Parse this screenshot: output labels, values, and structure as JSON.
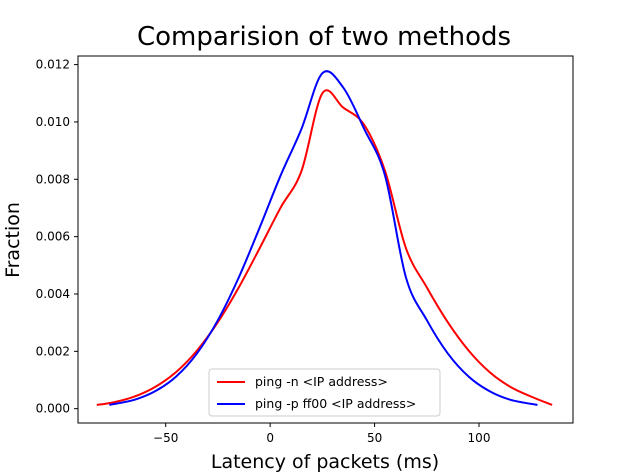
{
  "chart_data": {
    "type": "line",
    "title": "Comparision of two methods",
    "xlabel": "Latency of packets (ms)",
    "ylabel": "Fraction",
    "xlim": [
      -92,
      145
    ],
    "ylim": [
      -0.0005,
      0.0123
    ],
    "xticks": [
      -50,
      0,
      50,
      100
    ],
    "xtick_labels": [
      "−50",
      "0",
      "50",
      "100"
    ],
    "yticks": [
      0.0,
      0.002,
      0.004,
      0.006,
      0.008,
      0.01,
      0.012
    ],
    "ytick_labels": [
      "0.000",
      "0.002",
      "0.004",
      "0.006",
      "0.008",
      "0.010",
      "0.012"
    ],
    "grid": false,
    "legend_position": "lower center",
    "series": [
      {
        "name": "ping -n <IP address>",
        "color": "#ff0000",
        "x": [
          -83,
          -75,
          -65,
          -55,
          -45,
          -35,
          -25,
          -15,
          -5,
          5,
          15,
          25,
          35,
          45,
          55,
          65,
          75,
          85,
          95,
          105,
          115,
          125,
          135
        ],
        "y": [
          0.00013,
          0.00022,
          0.00042,
          0.00076,
          0.00128,
          0.00203,
          0.00302,
          0.00423,
          0.0056,
          0.00701,
          0.00829,
          0.011,
          0.0105,
          0.0099,
          0.00829,
          0.0056,
          0.00423,
          0.00302,
          0.00203,
          0.00128,
          0.00076,
          0.00042,
          0.00013
        ]
      },
      {
        "name": "ping -p ff00 <IP address>",
        "color": "#0000ff",
        "x": [
          -77,
          -65,
          -55,
          -45,
          -35,
          -25,
          -15,
          -5,
          5,
          15,
          25,
          35,
          45,
          55,
          65,
          75,
          85,
          95,
          105,
          115,
          128
        ],
        "y": [
          0.00013,
          0.00031,
          0.00061,
          0.00112,
          0.00193,
          0.00309,
          0.00458,
          0.00632,
          0.00813,
          0.00976,
          0.0117,
          0.0112,
          0.00976,
          0.00813,
          0.00458,
          0.00309,
          0.00193,
          0.00112,
          0.00061,
          0.00031,
          0.00013
        ]
      }
    ]
  }
}
